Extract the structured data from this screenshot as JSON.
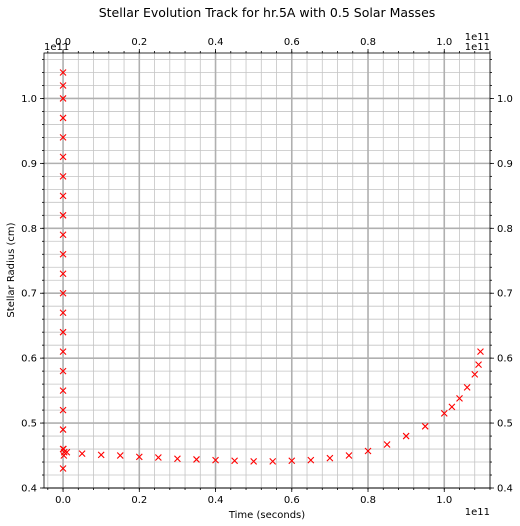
{
  "chart_data": {
    "type": "scatter",
    "title": "Stellar Evolution Track for hr.5A with 0.5 Solar Masses",
    "xlabel": "Time (seconds)",
    "ylabel": "Stellar Radius (cm)",
    "x_offset_text": "1e11",
    "y_offset_text": "1e11",
    "x_scale_factor": 100000000000.0,
    "y_scale_factor": 100000000000.0,
    "xlim": [
      -5000000000.0,
      112000000000.0
    ],
    "ylim": [
      40000000000.0,
      107000000000.0
    ],
    "x_ticks": [
      0,
      20000000000.0,
      40000000000.0,
      60000000000.0,
      80000000000.0,
      100000000000.0
    ],
    "x_tick_labels": [
      "0.0",
      "0.2",
      "0.4",
      "0.6",
      "0.8",
      "1.0"
    ],
    "y_ticks": [
      40000000000.0,
      50000000000.0,
      60000000000.0,
      70000000000.0,
      80000000000.0,
      90000000000.0,
      100000000000.0
    ],
    "y_tick_labels": [
      "0.4",
      "0.5",
      "0.6",
      "0.7",
      "0.8",
      "0.9",
      "1.0"
    ],
    "grid": true,
    "minor_grid": true,
    "marker": "x",
    "marker_color": "#ff0000",
    "series": [
      {
        "x": [
          0,
          0,
          0,
          0,
          0,
          0,
          0,
          0,
          0,
          0,
          0,
          0,
          0,
          0,
          0,
          0,
          0,
          0,
          0,
          0,
          0,
          0,
          100000000.0,
          200000000.0,
          300000000.0,
          1000000000.0,
          5000000000.0,
          10000000000.0,
          15000000000.0,
          20000000000.0,
          25000000000.0,
          30000000000.0,
          35000000000.0,
          40000000000.0,
          45000000000.0,
          50000000000.0,
          55000000000.0,
          60000000000.0,
          65000000000.0,
          70000000000.0,
          75000000000.0,
          80000000000.0,
          85000000000.0,
          90000000000.0,
          95000000000.0,
          100000000000.0,
          102000000000.0,
          104000000000.0,
          106000000000.0,
          108000000000.0,
          109000000000.0,
          109500000000.0
        ],
        "y": [
          104000000000.0,
          102000000000.0,
          100000000000.0,
          97000000000.0,
          94000000000.0,
          91000000000.0,
          88000000000.0,
          85000000000.0,
          82000000000.0,
          79000000000.0,
          76000000000.0,
          73000000000.0,
          70000000000.0,
          67000000000.0,
          64000000000.0,
          61000000000.0,
          58000000000.0,
          55000000000.0,
          52000000000.0,
          49000000000.0,
          46000000000.0,
          43000000000.0,
          46000000000.0,
          45000000000.0,
          45500000000.0,
          45500000000.0,
          45300000000.0,
          45100000000.0,
          45000000000.0,
          44800000000.0,
          44700000000.0,
          44500000000.0,
          44400000000.0,
          44300000000.0,
          44200000000.0,
          44100000000.0,
          44100000000.0,
          44200000000.0,
          44300000000.0,
          44600000000.0,
          45000000000.0,
          45700000000.0,
          46700000000.0,
          48000000000.0,
          49500000000.0,
          51500000000.0,
          52500000000.0,
          53800000000.0,
          55500000000.0,
          57500000000.0,
          59000000000.0,
          61000000000.0
        ]
      }
    ]
  }
}
